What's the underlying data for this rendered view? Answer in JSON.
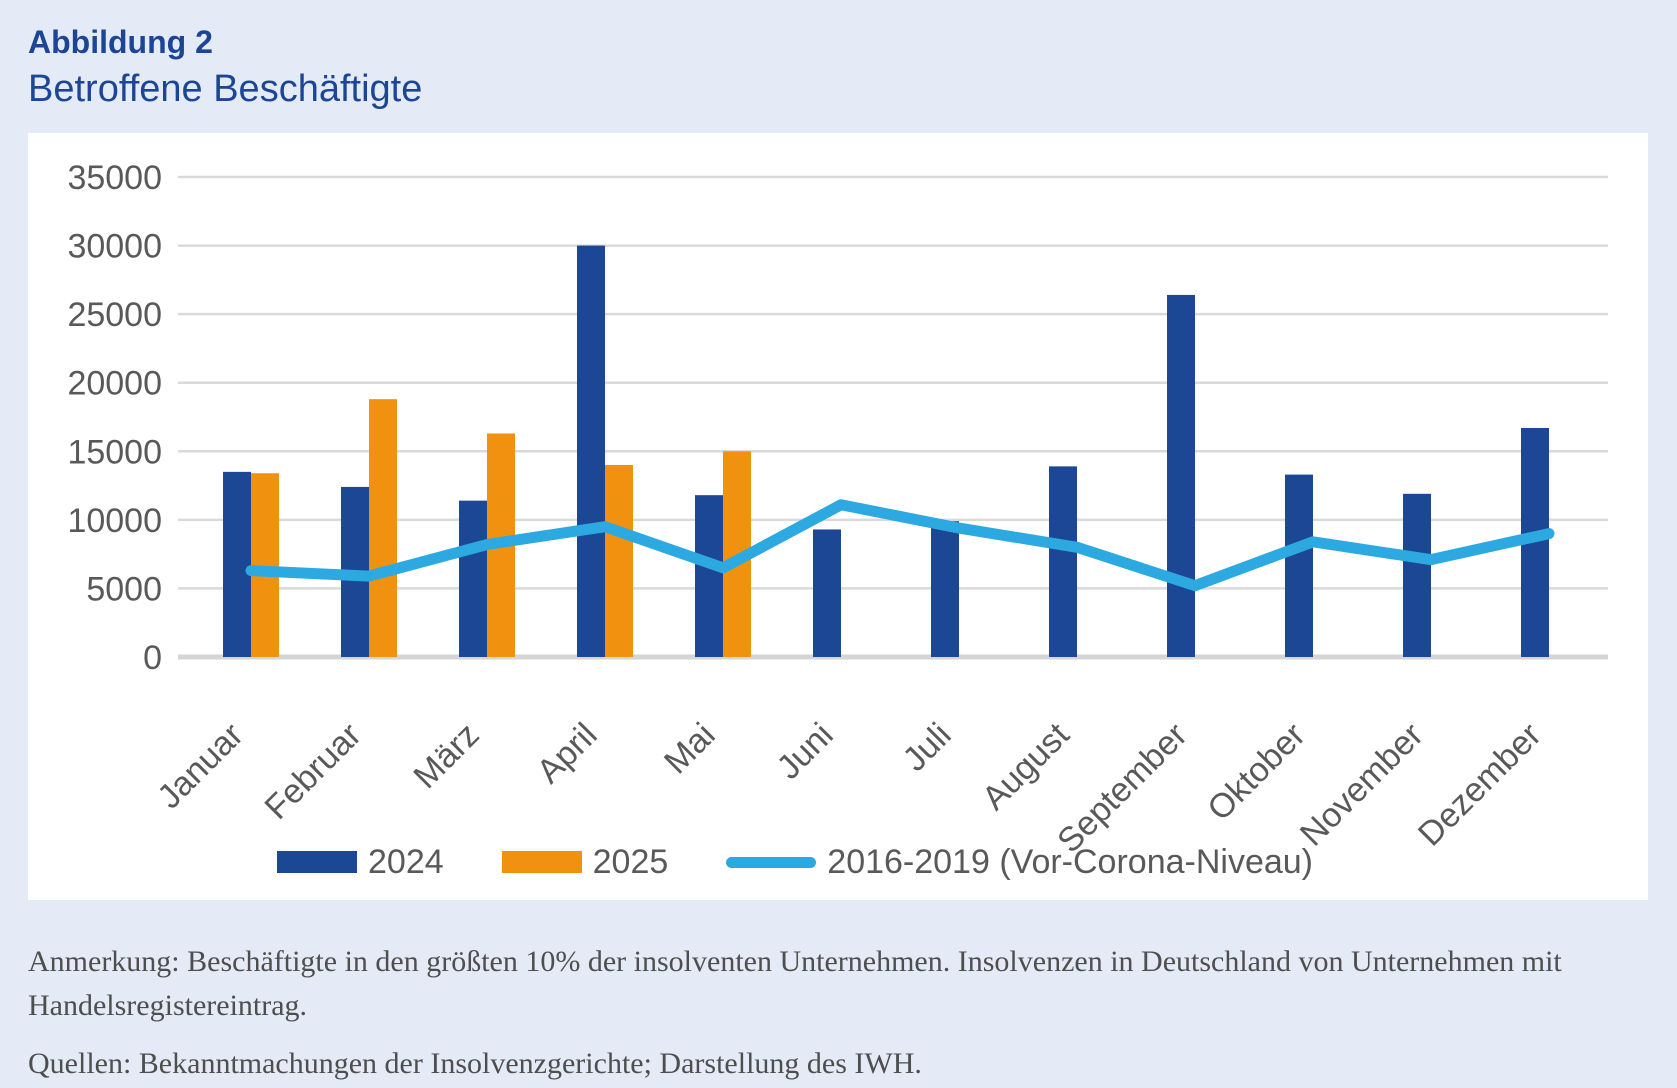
{
  "page": {
    "figure_label": "Abbildung 2",
    "title": "Betroffene Beschäftigte",
    "note": "Anmerkung: Beschäftigte in den größten 10% der insolventen Unternehmen. Insolvenzen in Deutschland von Unternehmen mit Handelsregistereintrag.",
    "sources": "Quellen: Bekanntmachungen der Insolvenzgerichte; Darstellung des IWH.",
    "colors": {
      "background": "#e4ebf6",
      "panel": "#ffffff",
      "title_text": "#1c4695",
      "axis_text": "#595959",
      "gridline": "#dadada",
      "axis_line": "#d5d5d5",
      "bar_2024": "#1c4795",
      "bar_2025": "#f0920f",
      "line_2016_2019": "#2ca9e1"
    }
  },
  "chart_data": {
    "type": "bar",
    "categories": [
      "Januar",
      "Februar",
      "März",
      "April",
      "Mai",
      "Juni",
      "Juli",
      "August",
      "September",
      "Oktober",
      "November",
      "Dezember"
    ],
    "series": [
      {
        "name": "2024",
        "type": "bar",
        "color": "#1c4795",
        "values": [
          13500,
          12400,
          11400,
          30000,
          11800,
          9300,
          9900,
          13900,
          26400,
          13300,
          11900,
          16700
        ]
      },
      {
        "name": "2025",
        "type": "bar",
        "color": "#f0920f",
        "values": [
          13400,
          18800,
          16300,
          14000,
          15000,
          null,
          null,
          null,
          null,
          null,
          null,
          null
        ]
      },
      {
        "name": "2016-2019 (Vor-Corona-Niveau)",
        "type": "line",
        "color": "#2ca9e1",
        "values": [
          6300,
          5900,
          8200,
          9500,
          6500,
          11100,
          9400,
          8000,
          5200,
          8400,
          7100,
          9000
        ]
      }
    ],
    "title": "Betroffene Beschäftigte",
    "xlabel": "",
    "ylabel": "",
    "ylim": [
      0,
      35000
    ],
    "yticks": [
      0,
      5000,
      10000,
      15000,
      20000,
      25000,
      30000,
      35000
    ],
    "grid": true,
    "legend_position": "bottom"
  }
}
